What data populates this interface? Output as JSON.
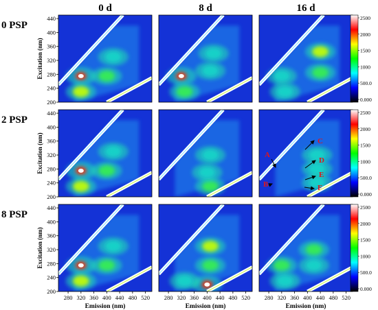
{
  "chart_data": {
    "type": "heatmap",
    "description_text": {
      "column_headers": [
        "0 d",
        "8 d",
        "16 d"
      ],
      "row_headers": [
        "0 PSP",
        "2 PSP",
        "8 PSP"
      ],
      "xlabel": "Emission (nm)",
      "ylabel": "Excitation (nm)"
    },
    "x_ticks": [
      280,
      320,
      360,
      400,
      440,
      480,
      520
    ],
    "y_ticks": [
      200,
      240,
      280,
      320,
      360,
      400,
      440
    ],
    "xlim": [
      250,
      540
    ],
    "ylim": [
      200,
      450
    ],
    "colorbar": {
      "ticks": [
        "0.000",
        "500.0",
        "1000",
        "1500",
        "2000",
        "2500"
      ],
      "range": [
        0,
        2500
      ],
      "colors": [
        "#000000",
        "#0000ff",
        "#00ffff",
        "#00ff00",
        "#ffff00",
        "#ff0000",
        "#ffffff"
      ]
    },
    "annotations": {
      "panel": "2 PSP, 16 d",
      "labels": [
        "A",
        "B",
        "C",
        "D",
        "E",
        "F"
      ],
      "color": "#e0151b"
    },
    "panels": [
      [
        {
          "peaks": [
            {
              "ex": 275,
              "em": 320,
              "level": "high"
            },
            {
              "ex": 230,
              "em": 320,
              "level": "mid"
            },
            {
              "ex": 275,
              "em": 400,
              "level": "low-mid"
            },
            {
              "ex": 330,
              "em": 420,
              "level": "low"
            }
          ]
        },
        {
          "peaks": [
            {
              "ex": 275,
              "em": 320,
              "level": "high"
            },
            {
              "ex": 230,
              "em": 330,
              "level": "low-mid"
            },
            {
              "ex": 290,
              "em": 410,
              "level": "low"
            },
            {
              "ex": 340,
              "em": 420,
              "level": "low"
            }
          ]
        },
        {
          "peaks": [
            {
              "ex": 345,
              "em": 440,
              "level": "mid"
            },
            {
              "ex": 285,
              "em": 440,
              "level": "low-mid"
            },
            {
              "ex": 275,
              "em": 320,
              "level": "low"
            },
            {
              "ex": 230,
              "em": 330,
              "level": "low"
            }
          ]
        }
      ],
      [
        {
          "peaks": [
            {
              "ex": 275,
              "em": 320,
              "level": "high"
            },
            {
              "ex": 230,
              "em": 320,
              "level": "mid"
            },
            {
              "ex": 275,
              "em": 400,
              "level": "low-mid"
            },
            {
              "ex": 330,
              "em": 420,
              "level": "low"
            }
          ]
        },
        {
          "peaks": [
            {
              "ex": 320,
              "em": 410,
              "level": "low"
            },
            {
              "ex": 230,
              "em": 410,
              "level": "low-mid"
            },
            {
              "ex": 270,
              "em": 400,
              "level": "low"
            }
          ]
        },
        {
          "peaks": [
            {
              "ex": 320,
              "em": 430,
              "level": "low"
            },
            {
              "ex": 280,
              "em": 430,
              "level": "low"
            },
            {
              "ex": 240,
              "em": 430,
              "level": "low"
            }
          ]
        }
      ],
      [
        {
          "peaks": [
            {
              "ex": 275,
              "em": 320,
              "level": "high"
            },
            {
              "ex": 230,
              "em": 320,
              "level": "mid"
            },
            {
              "ex": 275,
              "em": 400,
              "level": "low-mid"
            },
            {
              "ex": 330,
              "em": 420,
              "level": "low"
            }
          ]
        },
        {
          "peaks": [
            {
              "ex": 330,
              "em": 410,
              "level": "mid"
            },
            {
              "ex": 275,
              "em": 410,
              "level": "low-mid"
            },
            {
              "ex": 220,
              "em": 400,
              "level": "high"
            },
            {
              "ex": 230,
              "em": 330,
              "level": "low"
            }
          ]
        },
        {
          "peaks": [
            {
              "ex": 320,
              "em": 420,
              "level": "low-mid"
            },
            {
              "ex": 275,
              "em": 420,
              "level": "low"
            },
            {
              "ex": 275,
              "em": 320,
              "level": "low-mid"
            },
            {
              "ex": 230,
              "em": 330,
              "level": "low"
            }
          ]
        }
      ]
    ]
  }
}
